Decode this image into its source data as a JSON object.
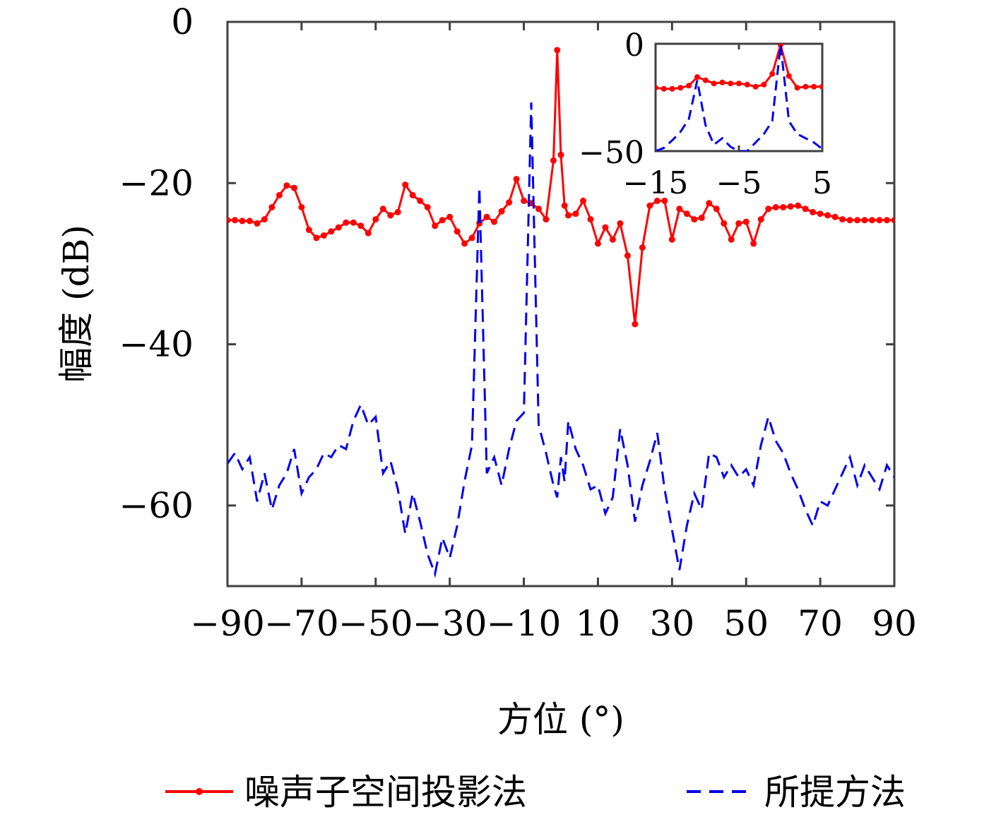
{
  "chart_data": {
    "type": "line",
    "xlabel": "方位 (°)",
    "ylabel": "幅度 (dB)",
    "xlim": [
      -90,
      90
    ],
    "ylim": [
      -70,
      0
    ],
    "xticks": [
      -90,
      -70,
      -50,
      -30,
      -10,
      10,
      30,
      50,
      70,
      90
    ],
    "yticks": [
      0,
      -20,
      -40,
      -60
    ],
    "xtick_labels": [
      "−90",
      "−70",
      "−50",
      "−30",
      "−10",
      "10",
      "30",
      "50",
      "70",
      "90"
    ],
    "ytick_labels": [
      "0",
      "−20",
      "−40",
      "−60"
    ],
    "grid": false,
    "legend_position": "bottom",
    "series": [
      {
        "name": "噪声子空间投影法",
        "color": "#ff0000",
        "style": "solid-dot",
        "x": [
          -90,
          -88,
          -86,
          -84,
          -82,
          -80,
          -78,
          -76,
          -74,
          -72,
          -70,
          -68,
          -66,
          -64,
          -62,
          -60,
          -58,
          -56,
          -54,
          -52,
          -50,
          -48,
          -46,
          -44,
          -42,
          -40,
          -38,
          -36,
          -34,
          -32,
          -30,
          -28,
          -26,
          -24,
          -22,
          -20,
          -18,
          -16,
          -14,
          -12,
          -10,
          -8,
          -6,
          -4,
          -2,
          -1,
          0,
          1,
          2,
          4,
          6,
          8,
          10,
          12,
          14,
          16,
          18,
          20,
          22,
          24,
          26,
          28,
          30,
          32,
          34,
          36,
          38,
          40,
          42,
          44,
          46,
          48,
          50,
          52,
          54,
          56,
          58,
          60,
          62,
          64,
          66,
          68,
          70,
          72,
          74,
          76,
          78,
          80,
          82,
          84,
          86,
          88,
          90
        ],
        "values": [
          -24.6,
          -24.6,
          -24.7,
          -24.7,
          -25.0,
          -24.5,
          -23.0,
          -21.5,
          -20.3,
          -20.6,
          -23.0,
          -25.8,
          -26.8,
          -26.5,
          -26.0,
          -25.5,
          -24.9,
          -24.9,
          -25.3,
          -26.2,
          -24.5,
          -23.2,
          -24.0,
          -23.6,
          -20.2,
          -21.5,
          -22.2,
          -23.0,
          -25.3,
          -24.6,
          -24.2,
          -26.0,
          -27.5,
          -26.8,
          -25.0,
          -24.2,
          -24.8,
          -23.5,
          -22.4,
          -19.5,
          -22.2,
          -22.5,
          -23.2,
          -24.5,
          -17.2,
          -3.5,
          -16.5,
          -22.8,
          -24.0,
          -23.8,
          -22.2,
          -24.5,
          -27.5,
          -25.5,
          -27.0,
          -25.0,
          -29.0,
          -37.5,
          -28.0,
          -22.8,
          -22.2,
          -22.2,
          -27.0,
          -23.2,
          -23.8,
          -24.5,
          -24.3,
          -22.5,
          -23.2,
          -25.0,
          -27.0,
          -25.0,
          -24.8,
          -27.5,
          -24.5,
          -23.2,
          -23.0,
          -23.0,
          -22.9,
          -22.8,
          -23.2,
          -23.6,
          -23.8,
          -24.0,
          -24.2,
          -24.5,
          -24.6,
          -24.6,
          -24.6,
          -24.6,
          -24.6,
          -24.6,
          -24.6
        ]
      },
      {
        "name": "所提方法",
        "color": "#0000ee",
        "style": "dashed",
        "x": [
          -90,
          -88,
          -86,
          -84,
          -82,
          -80,
          -78,
          -76,
          -74,
          -72,
          -70,
          -68,
          -66,
          -64,
          -62,
          -60,
          -58,
          -56,
          -54,
          -52,
          -50,
          -48,
          -46,
          -44,
          -42,
          -40,
          -38,
          -36,
          -34,
          -32,
          -30,
          -28,
          -26,
          -24,
          -22,
          -20,
          -18,
          -16,
          -14,
          -12,
          -10,
          -8,
          -6,
          -4,
          -2,
          -1,
          0,
          1,
          2,
          4,
          6,
          8,
          10,
          12,
          14,
          16,
          18,
          20,
          22,
          24,
          26,
          28,
          30,
          32,
          34,
          36,
          38,
          40,
          42,
          44,
          46,
          48,
          50,
          52,
          54,
          56,
          58,
          60,
          62,
          64,
          66,
          68,
          70,
          72,
          74,
          76,
          78,
          80,
          82,
          84,
          86,
          88,
          90
        ],
        "values": [
          -54.8,
          -53.5,
          -55.5,
          -54.0,
          -59.5,
          -56.0,
          -60.5,
          -57.5,
          -56.0,
          -53.0,
          -58.5,
          -56.5,
          -55.5,
          -53.5,
          -54.0,
          -52.5,
          -53.0,
          -49.5,
          -47.5,
          -50.0,
          -49.0,
          -56.0,
          -54.5,
          -58.0,
          -63.5,
          -58.5,
          -62.0,
          -66.0,
          -68.5,
          -64.0,
          -66.5,
          -62.5,
          -57.0,
          -52.5,
          -20.5,
          -56.0,
          -54.0,
          -57.5,
          -53.0,
          -49.5,
          -48.5,
          -10.0,
          -50.0,
          -53.5,
          -57.5,
          -59.0,
          -54.0,
          -57.0,
          -49.5,
          -53.0,
          -55.0,
          -58.0,
          -57.5,
          -61.0,
          -59.0,
          -50.5,
          -55.0,
          -62.0,
          -57.5,
          -54.5,
          -51.0,
          -58.0,
          -63.0,
          -68.0,
          -62.5,
          -58.5,
          -60.5,
          -53.5,
          -54.0,
          -56.5,
          -55.0,
          -56.5,
          -55.5,
          -57.5,
          -52.5,
          -49.0,
          -52.0,
          -53.5,
          -56.0,
          -58.0,
          -60.5,
          -62.5,
          -59.5,
          -60.0,
          -58.0,
          -56.0,
          -54.0,
          -57.5,
          -55.0,
          -56.5,
          -58.0,
          -55.0,
          -56.5
        ]
      }
    ],
    "inset": {
      "xlim": [
        -15,
        5
      ],
      "ylim": [
        -50,
        0
      ],
      "xticks": [
        -15,
        -5,
        5
      ],
      "yticks": [
        0,
        -50
      ],
      "xtick_labels": [
        "−15",
        "−5",
        "5"
      ],
      "ytick_labels": [
        "0",
        "−50"
      ],
      "series": [
        {
          "name": "噪声子空间投影法",
          "x": [
            -15,
            -14,
            -13,
            -12,
            -11,
            -10,
            -9,
            -8,
            -7,
            -6,
            -5,
            -4,
            -3,
            -2,
            -1,
            0,
            1,
            2,
            3,
            4,
            5
          ],
          "values": [
            -20.5,
            -21.0,
            -21.0,
            -20.5,
            -19.5,
            -15.5,
            -17.0,
            -18.5,
            -18.0,
            -18.5,
            -18.5,
            -19.0,
            -20.0,
            -19.0,
            -14.0,
            -0.5,
            -15.0,
            -20.5,
            -20.0,
            -20.0,
            -20.0
          ]
        },
        {
          "name": "所提方法",
          "x": [
            -15,
            -14,
            -13,
            -12,
            -11,
            -10,
            -9,
            -8,
            -7,
            -6,
            -5,
            -4,
            -3,
            -2,
            -1,
            0,
            1,
            2,
            3,
            4,
            5
          ],
          "values": [
            -50.0,
            -48.5,
            -45.0,
            -41.0,
            -35.0,
            -17.0,
            -38.0,
            -47.0,
            -44.0,
            -48.0,
            -50.0,
            -50.0,
            -46.0,
            -42.0,
            -36.0,
            -0.5,
            -36.0,
            -42.0,
            -44.0,
            -46.0,
            -49.0
          ]
        }
      ]
    }
  }
}
